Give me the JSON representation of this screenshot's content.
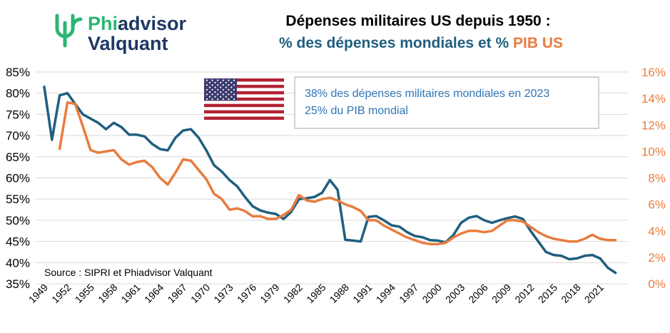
{
  "logo": {
    "line1_a": "Phi",
    "line1_b": "advisor",
    "line2": "Valquant"
  },
  "title": {
    "line1": "Dépenses militaires US depuis 1950 :",
    "line2_pct1": "%",
    "line2_series1": "des dépenses mondiales",
    "line2_et": "et",
    "line2_pct2": "%",
    "line2_series2": "PIB US"
  },
  "annotation": {
    "line1": "38% des dépenses militaires mondiales en 2023",
    "line2": "25% du PIB mondial"
  },
  "source": "Source : SIPRI et Phiadvisor Valquant",
  "colors": {
    "world_share": "#1f5f7f",
    "gdp_share": "#e87c3e",
    "logo_green": "#2bb673",
    "title_dark": "#000000",
    "note_blue": "#2e75b6"
  },
  "chart_data": {
    "type": "line",
    "x_tick_labels": [
      "1949",
      "1952",
      "1955",
      "1958",
      "1961",
      "1964",
      "1967",
      "1970",
      "1973",
      "1976",
      "1979",
      "1982",
      "1985",
      "1988",
      "1991",
      "1994",
      "1997",
      "2000",
      "2003",
      "2006",
      "2009",
      "2012",
      "2015",
      "2018",
      "2021"
    ],
    "y_left": {
      "range": [
        35,
        85
      ],
      "ticks": [
        "35%",
        "40%",
        "45%",
        "50%",
        "55%",
        "60%",
        "65%",
        "70%",
        "75%",
        "80%",
        "85%"
      ],
      "unit": "%"
    },
    "y_right": {
      "range": [
        0,
        16
      ],
      "ticks": [
        "0%",
        "2%",
        "4%",
        "6%",
        "8%",
        "10%",
        "12%",
        "14%",
        "16%"
      ],
      "unit": "%"
    },
    "grid": "horizontal",
    "series": [
      {
        "name": "% des dépenses mondiales",
        "axis": "left",
        "color": "#1f5f7f",
        "points": [
          [
            1949,
            81.5
          ],
          [
            1950,
            69
          ],
          [
            1951,
            79.5
          ],
          [
            1952,
            80
          ],
          [
            1953,
            77.5
          ],
          [
            1954,
            75
          ],
          [
            1955,
            74
          ],
          [
            1956,
            73
          ],
          [
            1957,
            71.5
          ],
          [
            1958,
            73
          ],
          [
            1959,
            72
          ],
          [
            1960,
            70.2
          ],
          [
            1961,
            70.2
          ],
          [
            1962,
            69.8
          ],
          [
            1963,
            68
          ],
          [
            1964,
            66.8
          ],
          [
            1965,
            66.5
          ],
          [
            1966,
            69.5
          ],
          [
            1967,
            71.2
          ],
          [
            1968,
            71.5
          ],
          [
            1969,
            69.5
          ],
          [
            1970,
            66.5
          ],
          [
            1971,
            63
          ],
          [
            1972,
            61.5
          ],
          [
            1973,
            59.5
          ],
          [
            1974,
            58
          ],
          [
            1975,
            55.5
          ],
          [
            1976,
            53.3
          ],
          [
            1977,
            52.3
          ],
          [
            1978,
            51.8
          ],
          [
            1979,
            51.5
          ],
          [
            1980,
            50.3
          ],
          [
            1981,
            52
          ],
          [
            1982,
            55
          ],
          [
            1983,
            55.2
          ],
          [
            1984,
            55.5
          ],
          [
            1985,
            56.5
          ],
          [
            1986,
            59.5
          ],
          [
            1987,
            57.2
          ],
          [
            1988,
            45.4
          ],
          [
            1989,
            45.2
          ],
          [
            1990,
            45
          ],
          [
            1991,
            50.8
          ],
          [
            1992,
            51
          ],
          [
            1993,
            50
          ],
          [
            1994,
            48.8
          ],
          [
            1995,
            48.5
          ],
          [
            1996,
            47.2
          ],
          [
            1997,
            46.3
          ],
          [
            1998,
            46
          ],
          [
            1999,
            45.3
          ],
          [
            2000,
            45.2
          ],
          [
            2001,
            44.8
          ],
          [
            2002,
            46.5
          ],
          [
            2003,
            49.4
          ],
          [
            2004,
            50.6
          ],
          [
            2005,
            51
          ],
          [
            2006,
            50
          ],
          [
            2007,
            49.4
          ],
          [
            2008,
            50
          ],
          [
            2009,
            50.5
          ],
          [
            2010,
            50.9
          ],
          [
            2011,
            50.3
          ],
          [
            2012,
            47.5
          ],
          [
            2013,
            45
          ],
          [
            2014,
            42.5
          ],
          [
            2015,
            41.8
          ],
          [
            2016,
            41.6
          ],
          [
            2017,
            40.8
          ],
          [
            2018,
            41
          ],
          [
            2019,
            41.6
          ],
          [
            2020,
            41.8
          ],
          [
            2021,
            41
          ],
          [
            2022,
            38.8
          ],
          [
            2023,
            37.6
          ]
        ]
      },
      {
        "name": "% PIB US",
        "axis": "right",
        "color": "#e87c3e",
        "points": [
          [
            1951,
            10.2
          ],
          [
            1952,
            13.7
          ],
          [
            1953,
            13.6
          ],
          [
            1954,
            11.9
          ],
          [
            1955,
            10.1
          ],
          [
            1956,
            9.9
          ],
          [
            1957,
            10
          ],
          [
            1958,
            10.1
          ],
          [
            1959,
            9.4
          ],
          [
            1960,
            9
          ],
          [
            1961,
            9.2
          ],
          [
            1962,
            9.3
          ],
          [
            1963,
            8.8
          ],
          [
            1964,
            8
          ],
          [
            1965,
            7.5
          ],
          [
            1966,
            8.4
          ],
          [
            1967,
            9.4
          ],
          [
            1968,
            9.3
          ],
          [
            1969,
            8.6
          ],
          [
            1970,
            7.9
          ],
          [
            1971,
            6.8
          ],
          [
            1972,
            6.4
          ],
          [
            1973,
            5.6
          ],
          [
            1974,
            5.7
          ],
          [
            1975,
            5.5
          ],
          [
            1976,
            5.1
          ],
          [
            1977,
            5.1
          ],
          [
            1978,
            4.9
          ],
          [
            1979,
            4.9
          ],
          [
            1980,
            5.2
          ],
          [
            1981,
            5.6
          ],
          [
            1982,
            6.7
          ],
          [
            1983,
            6.3
          ],
          [
            1984,
            6.2
          ],
          [
            1985,
            6.4
          ],
          [
            1986,
            6.5
          ],
          [
            1987,
            6.3
          ],
          [
            1988,
            6
          ],
          [
            1989,
            5.8
          ],
          [
            1990,
            5.5
          ],
          [
            1991,
            4.8
          ],
          [
            1992,
            4.8
          ],
          [
            1993,
            4.4
          ],
          [
            1994,
            4.1
          ],
          [
            1995,
            3.8
          ],
          [
            1996,
            3.5
          ],
          [
            1997,
            3.3
          ],
          [
            1998,
            3.1
          ],
          [
            1999,
            3
          ],
          [
            2000,
            3
          ],
          [
            2001,
            3.1
          ],
          [
            2002,
            3.5
          ],
          [
            2003,
            3.8
          ],
          [
            2004,
            4
          ],
          [
            2005,
            4
          ],
          [
            2006,
            3.9
          ],
          [
            2007,
            4
          ],
          [
            2008,
            4.4
          ],
          [
            2009,
            4.8
          ],
          [
            2010,
            4.8
          ],
          [
            2011,
            4.7
          ],
          [
            2012,
            4.3
          ],
          [
            2013,
            3.9
          ],
          [
            2014,
            3.6
          ],
          [
            2015,
            3.4
          ],
          [
            2016,
            3.3
          ],
          [
            2017,
            3.2
          ],
          [
            2018,
            3.2
          ],
          [
            2019,
            3.4
          ],
          [
            2020,
            3.7
          ],
          [
            2021,
            3.4
          ],
          [
            2022,
            3.3
          ],
          [
            2023,
            3.3
          ]
        ]
      }
    ]
  }
}
